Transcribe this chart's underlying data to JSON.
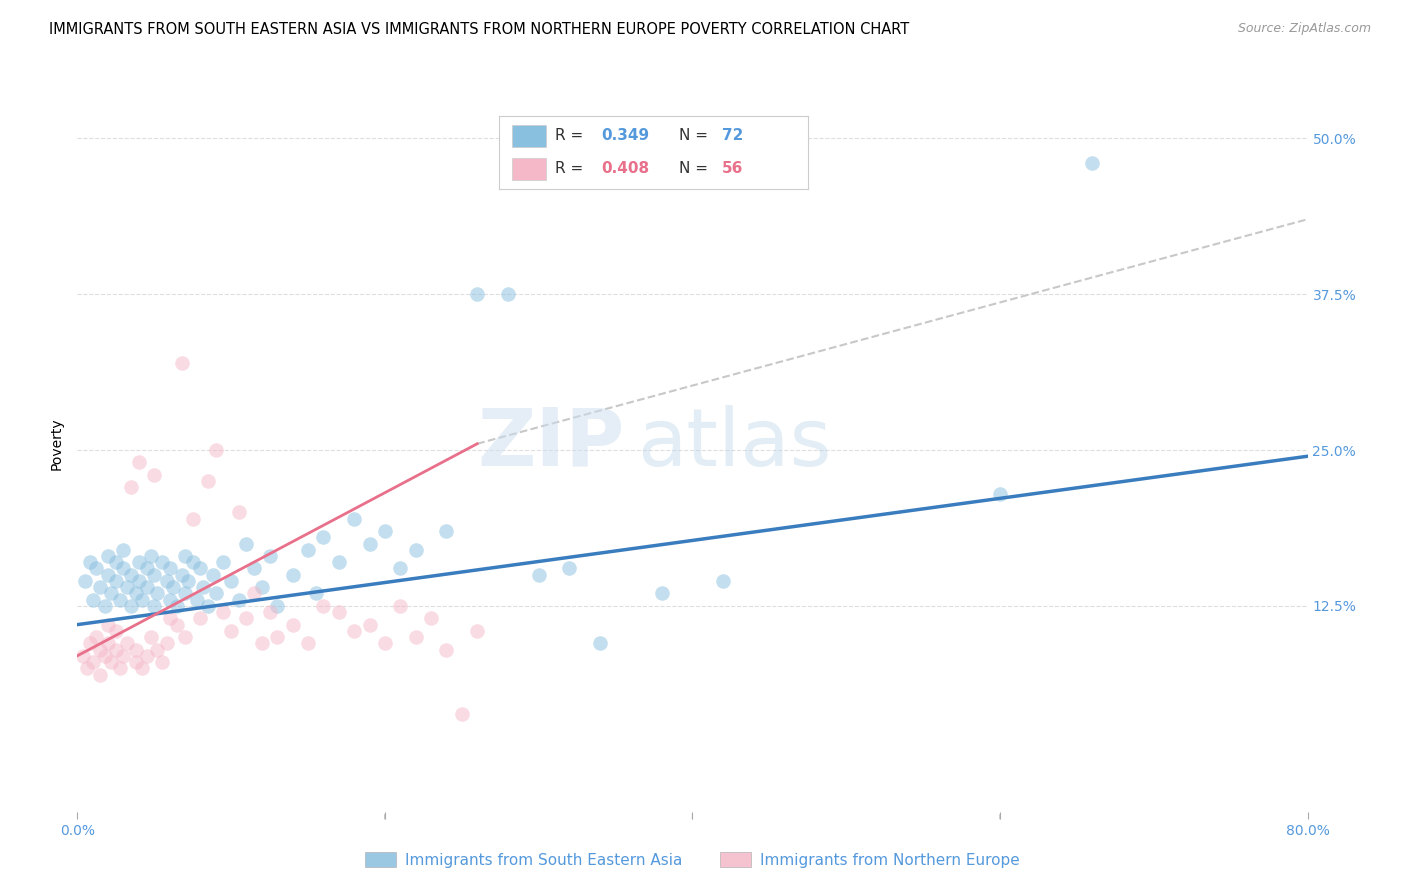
{
  "title": "IMMIGRANTS FROM SOUTH EASTERN ASIA VS IMMIGRANTS FROM NORTHERN EUROPE POVERTY CORRELATION CHART",
  "source": "Source: ZipAtlas.com",
  "ylabel": "Poverty",
  "ytick_values": [
    0.0,
    0.125,
    0.25,
    0.375,
    0.5
  ],
  "ytick_labels": [
    "",
    "12.5%",
    "25.0%",
    "37.5%",
    "50.0%"
  ],
  "xlim": [
    0.0,
    0.8
  ],
  "ylim": [
    -0.04,
    0.55
  ],
  "watermark_zip": "ZIP",
  "watermark_atlas": "atlas",
  "legend_blue_label": "Immigrants from South Eastern Asia",
  "legend_pink_label": "Immigrants from Northern Europe",
  "legend_r_blue": "0.349",
  "legend_n_blue": "72",
  "legend_r_pink": "0.408",
  "legend_n_pink": "56",
  "blue_color": "#89bfdf",
  "pink_color": "#f4b8c8",
  "blue_line_color": "#3a7dbf",
  "pink_line_color": "#e8708a",
  "dashed_color": "#c8c8c8",
  "blue_scatter_x": [
    0.005,
    0.008,
    0.01,
    0.012,
    0.015,
    0.018,
    0.02,
    0.02,
    0.022,
    0.025,
    0.025,
    0.028,
    0.03,
    0.03,
    0.032,
    0.035,
    0.035,
    0.038,
    0.04,
    0.04,
    0.042,
    0.045,
    0.045,
    0.048,
    0.05,
    0.05,
    0.052,
    0.055,
    0.058,
    0.06,
    0.06,
    0.062,
    0.065,
    0.068,
    0.07,
    0.07,
    0.072,
    0.075,
    0.078,
    0.08,
    0.082,
    0.085,
    0.088,
    0.09,
    0.095,
    0.1,
    0.105,
    0.11,
    0.115,
    0.12,
    0.125,
    0.13,
    0.14,
    0.15,
    0.155,
    0.16,
    0.17,
    0.18,
    0.19,
    0.2,
    0.21,
    0.22,
    0.24,
    0.26,
    0.28,
    0.3,
    0.32,
    0.34,
    0.38,
    0.42,
    0.6,
    0.66
  ],
  "blue_scatter_y": [
    0.145,
    0.16,
    0.13,
    0.155,
    0.14,
    0.125,
    0.15,
    0.165,
    0.135,
    0.145,
    0.16,
    0.13,
    0.155,
    0.17,
    0.14,
    0.125,
    0.15,
    0.135,
    0.16,
    0.145,
    0.13,
    0.155,
    0.14,
    0.165,
    0.125,
    0.15,
    0.135,
    0.16,
    0.145,
    0.13,
    0.155,
    0.14,
    0.125,
    0.15,
    0.165,
    0.135,
    0.145,
    0.16,
    0.13,
    0.155,
    0.14,
    0.125,
    0.15,
    0.135,
    0.16,
    0.145,
    0.13,
    0.175,
    0.155,
    0.14,
    0.165,
    0.125,
    0.15,
    0.17,
    0.135,
    0.18,
    0.16,
    0.195,
    0.175,
    0.185,
    0.155,
    0.17,
    0.185,
    0.375,
    0.375,
    0.15,
    0.155,
    0.095,
    0.135,
    0.145,
    0.215,
    0.48
  ],
  "pink_scatter_x": [
    0.004,
    0.006,
    0.008,
    0.01,
    0.012,
    0.015,
    0.015,
    0.018,
    0.02,
    0.02,
    0.022,
    0.025,
    0.025,
    0.028,
    0.03,
    0.032,
    0.035,
    0.038,
    0.038,
    0.04,
    0.042,
    0.045,
    0.048,
    0.05,
    0.052,
    0.055,
    0.058,
    0.06,
    0.065,
    0.068,
    0.07,
    0.075,
    0.08,
    0.085,
    0.09,
    0.095,
    0.1,
    0.105,
    0.11,
    0.115,
    0.12,
    0.125,
    0.13,
    0.14,
    0.15,
    0.16,
    0.17,
    0.18,
    0.19,
    0.2,
    0.21,
    0.22,
    0.23,
    0.24,
    0.25,
    0.26
  ],
  "pink_scatter_y": [
    0.085,
    0.075,
    0.095,
    0.08,
    0.1,
    0.07,
    0.09,
    0.085,
    0.095,
    0.11,
    0.08,
    0.09,
    0.105,
    0.075,
    0.085,
    0.095,
    0.22,
    0.08,
    0.09,
    0.24,
    0.075,
    0.085,
    0.1,
    0.23,
    0.09,
    0.08,
    0.095,
    0.115,
    0.11,
    0.32,
    0.1,
    0.195,
    0.115,
    0.225,
    0.25,
    0.12,
    0.105,
    0.2,
    0.115,
    0.135,
    0.095,
    0.12,
    0.1,
    0.11,
    0.095,
    0.125,
    0.12,
    0.105,
    0.11,
    0.095,
    0.125,
    0.1,
    0.115,
    0.09,
    0.038,
    0.105
  ],
  "blue_trendline_x": [
    0.0,
    0.8
  ],
  "blue_trendline_y": [
    0.11,
    0.245
  ],
  "pink_trendline_x": [
    0.0,
    0.26
  ],
  "pink_trendline_y": [
    0.085,
    0.255
  ],
  "dashed_line_x": [
    0.26,
    0.8
  ],
  "dashed_line_y": [
    0.255,
    0.435
  ],
  "grid_color": "#dedede",
  "marker_size": 110,
  "marker_alpha": 0.5,
  "title_fontsize": 10.5,
  "source_fontsize": 9,
  "axis_label_fontsize": 10,
  "tick_fontsize": 10,
  "tick_color": "#5599dd"
}
